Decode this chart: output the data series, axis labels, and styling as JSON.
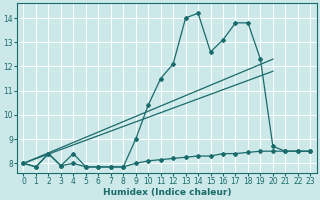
{
  "title": "",
  "xlabel": "Humidex (Indice chaleur)",
  "background_color": "#cce8e8",
  "grid_color": "#ffffff",
  "line_color": "#1a6b6b",
  "x": [
    0,
    1,
    2,
    3,
    4,
    5,
    6,
    7,
    8,
    9,
    10,
    11,
    12,
    13,
    14,
    15,
    16,
    17,
    18,
    19,
    20,
    21,
    22,
    23
  ],
  "line1": [
    8.0,
    7.85,
    8.4,
    7.9,
    8.4,
    7.85,
    7.85,
    7.85,
    7.85,
    9.0,
    10.4,
    11.5,
    12.1,
    14.0,
    14.2,
    12.6,
    13.1,
    13.8,
    13.8,
    12.3,
    8.7,
    8.5,
    8.5,
    8.5
  ],
  "line2": [
    8.0,
    7.85,
    8.4,
    7.9,
    8.0,
    7.85,
    7.85,
    7.85,
    7.85,
    8.0,
    8.1,
    8.15,
    8.2,
    8.25,
    8.3,
    8.3,
    8.4,
    8.4,
    8.45,
    8.5,
    8.5,
    8.5,
    8.5,
    8.5
  ],
  "trend1_x": [
    0,
    20
  ],
  "trend1_y": [
    8.0,
    12.3
  ],
  "trend2_x": [
    0,
    20
  ],
  "trend2_y": [
    8.0,
    11.8
  ],
  "ylim": [
    7.6,
    14.6
  ],
  "xlim": [
    -0.5,
    23.5
  ],
  "yticks": [
    8,
    9,
    10,
    11,
    12,
    13,
    14
  ],
  "xticks": [
    0,
    1,
    2,
    3,
    4,
    5,
    6,
    7,
    8,
    9,
    10,
    11,
    12,
    13,
    14,
    15,
    16,
    17,
    18,
    19,
    20,
    21,
    22,
    23
  ]
}
